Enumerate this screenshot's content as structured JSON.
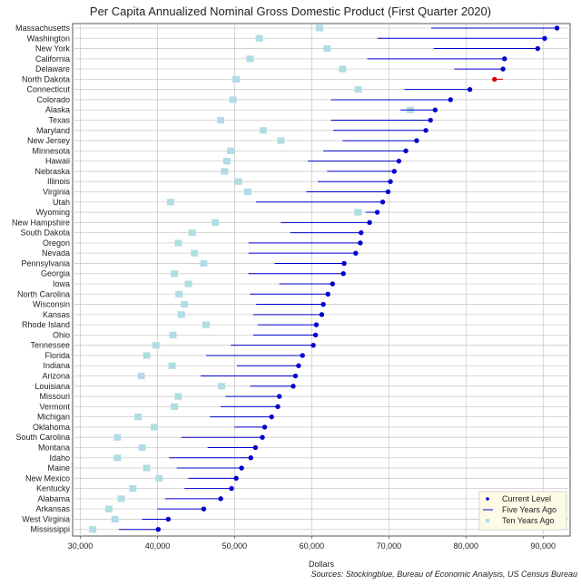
{
  "colors": {
    "current": "#0000cc",
    "highlight": "#dd0000",
    "ten_years": "#b0dde4",
    "grid": "#cccccc",
    "legend_bg": "#fdfbe6"
  },
  "chart_data": {
    "type": "dot",
    "title": "Per Capita Annualized Nominal Gross Domestic Product (First Quarter 2020)",
    "xlabel": "Dollars",
    "source": "Sources: Stockingblue, Bureau of Economic Analysis, US Census Bureau",
    "xlim": [
      29000,
      93500
    ],
    "x_ticks": [
      30000,
      40000,
      50000,
      60000,
      70000,
      80000,
      90000
    ],
    "x_tick_labels": [
      "30,000",
      "40,000",
      "50,000",
      "60,000",
      "70,000",
      "80,000",
      "90,000"
    ],
    "grid": true,
    "legend_position": "bottom-right",
    "legend": {
      "current": "Current Level",
      "five": "Five Years Ago",
      "ten": "Ten Years Ago"
    },
    "series_names": [
      "Current Level",
      "Five Years Ago",
      "Ten Years Ago"
    ],
    "states": [
      {
        "name": "Massachusetts",
        "current": 91800,
        "five": 75500,
        "ten": 61000
      },
      {
        "name": "Washington",
        "current": 90200,
        "five": 68500,
        "ten": 53200
      },
      {
        "name": "New York",
        "current": 89300,
        "five": 75800,
        "ten": 62000
      },
      {
        "name": "California",
        "current": 85000,
        "five": 67200,
        "ten": 52000
      },
      {
        "name": "Delaware",
        "current": 84800,
        "five": 78500,
        "ten": 64000
      },
      {
        "name": "North Dakota",
        "current": 83700,
        "five": 84800,
        "ten": 50200,
        "highlight": true
      },
      {
        "name": "Connecticut",
        "current": 80500,
        "five": 72000,
        "ten": 66000
      },
      {
        "name": "Colorado",
        "current": 78000,
        "five": 62500,
        "ten": 49800
      },
      {
        "name": "Alaska",
        "current": 76000,
        "five": 71500,
        "ten": 72800
      },
      {
        "name": "Texas",
        "current": 75400,
        "five": 62500,
        "ten": 48200
      },
      {
        "name": "Maryland",
        "current": 74800,
        "five": 62800,
        "ten": 53700
      },
      {
        "name": "New Jersey",
        "current": 73600,
        "five": 64000,
        "ten": 56000
      },
      {
        "name": "Minnesota",
        "current": 72200,
        "five": 61500,
        "ten": 49500
      },
      {
        "name": "Hawaii",
        "current": 71300,
        "five": 59500,
        "ten": 49000
      },
      {
        "name": "Nebraska",
        "current": 70700,
        "five": 62000,
        "ten": 48700
      },
      {
        "name": "Illinois",
        "current": 70200,
        "five": 60800,
        "ten": 50500
      },
      {
        "name": "Virginia",
        "current": 69900,
        "five": 59300,
        "ten": 51700
      },
      {
        "name": "Utah",
        "current": 69200,
        "five": 52800,
        "ten": 41700
      },
      {
        "name": "Wyoming",
        "current": 68500,
        "five": 67000,
        "ten": 66000
      },
      {
        "name": "New Hampshire",
        "current": 67500,
        "five": 56000,
        "ten": 47500
      },
      {
        "name": "South Dakota",
        "current": 66400,
        "five": 57200,
        "ten": 44500
      },
      {
        "name": "Oregon",
        "current": 66300,
        "five": 51800,
        "ten": 42700
      },
      {
        "name": "Nevada",
        "current": 65700,
        "five": 51800,
        "ten": 44800
      },
      {
        "name": "Pennsylvania",
        "current": 64200,
        "five": 55200,
        "ten": 46000
      },
      {
        "name": "Georgia",
        "current": 64100,
        "five": 51800,
        "ten": 42200
      },
      {
        "name": "Iowa",
        "current": 62700,
        "five": 55800,
        "ten": 44000
      },
      {
        "name": "North Carolina",
        "current": 62100,
        "five": 52000,
        "ten": 42800
      },
      {
        "name": "Wisconsin",
        "current": 61500,
        "five": 52800,
        "ten": 43500
      },
      {
        "name": "Kansas",
        "current": 61300,
        "five": 52400,
        "ten": 43100
      },
      {
        "name": "Rhode Island",
        "current": 60600,
        "five": 53000,
        "ten": 46300
      },
      {
        "name": "Ohio",
        "current": 60500,
        "five": 52400,
        "ten": 42000
      },
      {
        "name": "Tennessee",
        "current": 60200,
        "five": 49500,
        "ten": 39800
      },
      {
        "name": "Florida",
        "current": 58800,
        "five": 46300,
        "ten": 38600
      },
      {
        "name": "Indiana",
        "current": 58300,
        "five": 50300,
        "ten": 41900
      },
      {
        "name": "Arizona",
        "current": 57900,
        "five": 45600,
        "ten": 37900
      },
      {
        "name": "Louisiana",
        "current": 57600,
        "five": 52000,
        "ten": 48300
      },
      {
        "name": "Missouri",
        "current": 55800,
        "five": 48800,
        "ten": 42700
      },
      {
        "name": "Vermont",
        "current": 55600,
        "five": 48200,
        "ten": 42200
      },
      {
        "name": "Michigan",
        "current": 54800,
        "five": 46800,
        "ten": 37500
      },
      {
        "name": "Oklahoma",
        "current": 53900,
        "five": 50000,
        "ten": 39600
      },
      {
        "name": "South Carolina",
        "current": 53600,
        "five": 43100,
        "ten": 34800
      },
      {
        "name": "Montana",
        "current": 52700,
        "five": 46500,
        "ten": 38000
      },
      {
        "name": "Idaho",
        "current": 52100,
        "five": 41500,
        "ten": 34800
      },
      {
        "name": "Maine",
        "current": 50900,
        "five": 42500,
        "ten": 38600
      },
      {
        "name": "New Mexico",
        "current": 50200,
        "five": 44000,
        "ten": 40200
      },
      {
        "name": "Kentucky",
        "current": 49600,
        "five": 43500,
        "ten": 36800
      },
      {
        "name": "Alabama",
        "current": 48200,
        "five": 41000,
        "ten": 35300
      },
      {
        "name": "Arkansas",
        "current": 46000,
        "five": 40000,
        "ten": 33700
      },
      {
        "name": "West Virginia",
        "current": 41400,
        "five": 38000,
        "ten": 34500
      },
      {
        "name": "Mississippi",
        "current": 40100,
        "five": 35000,
        "ten": 31600
      }
    ]
  }
}
